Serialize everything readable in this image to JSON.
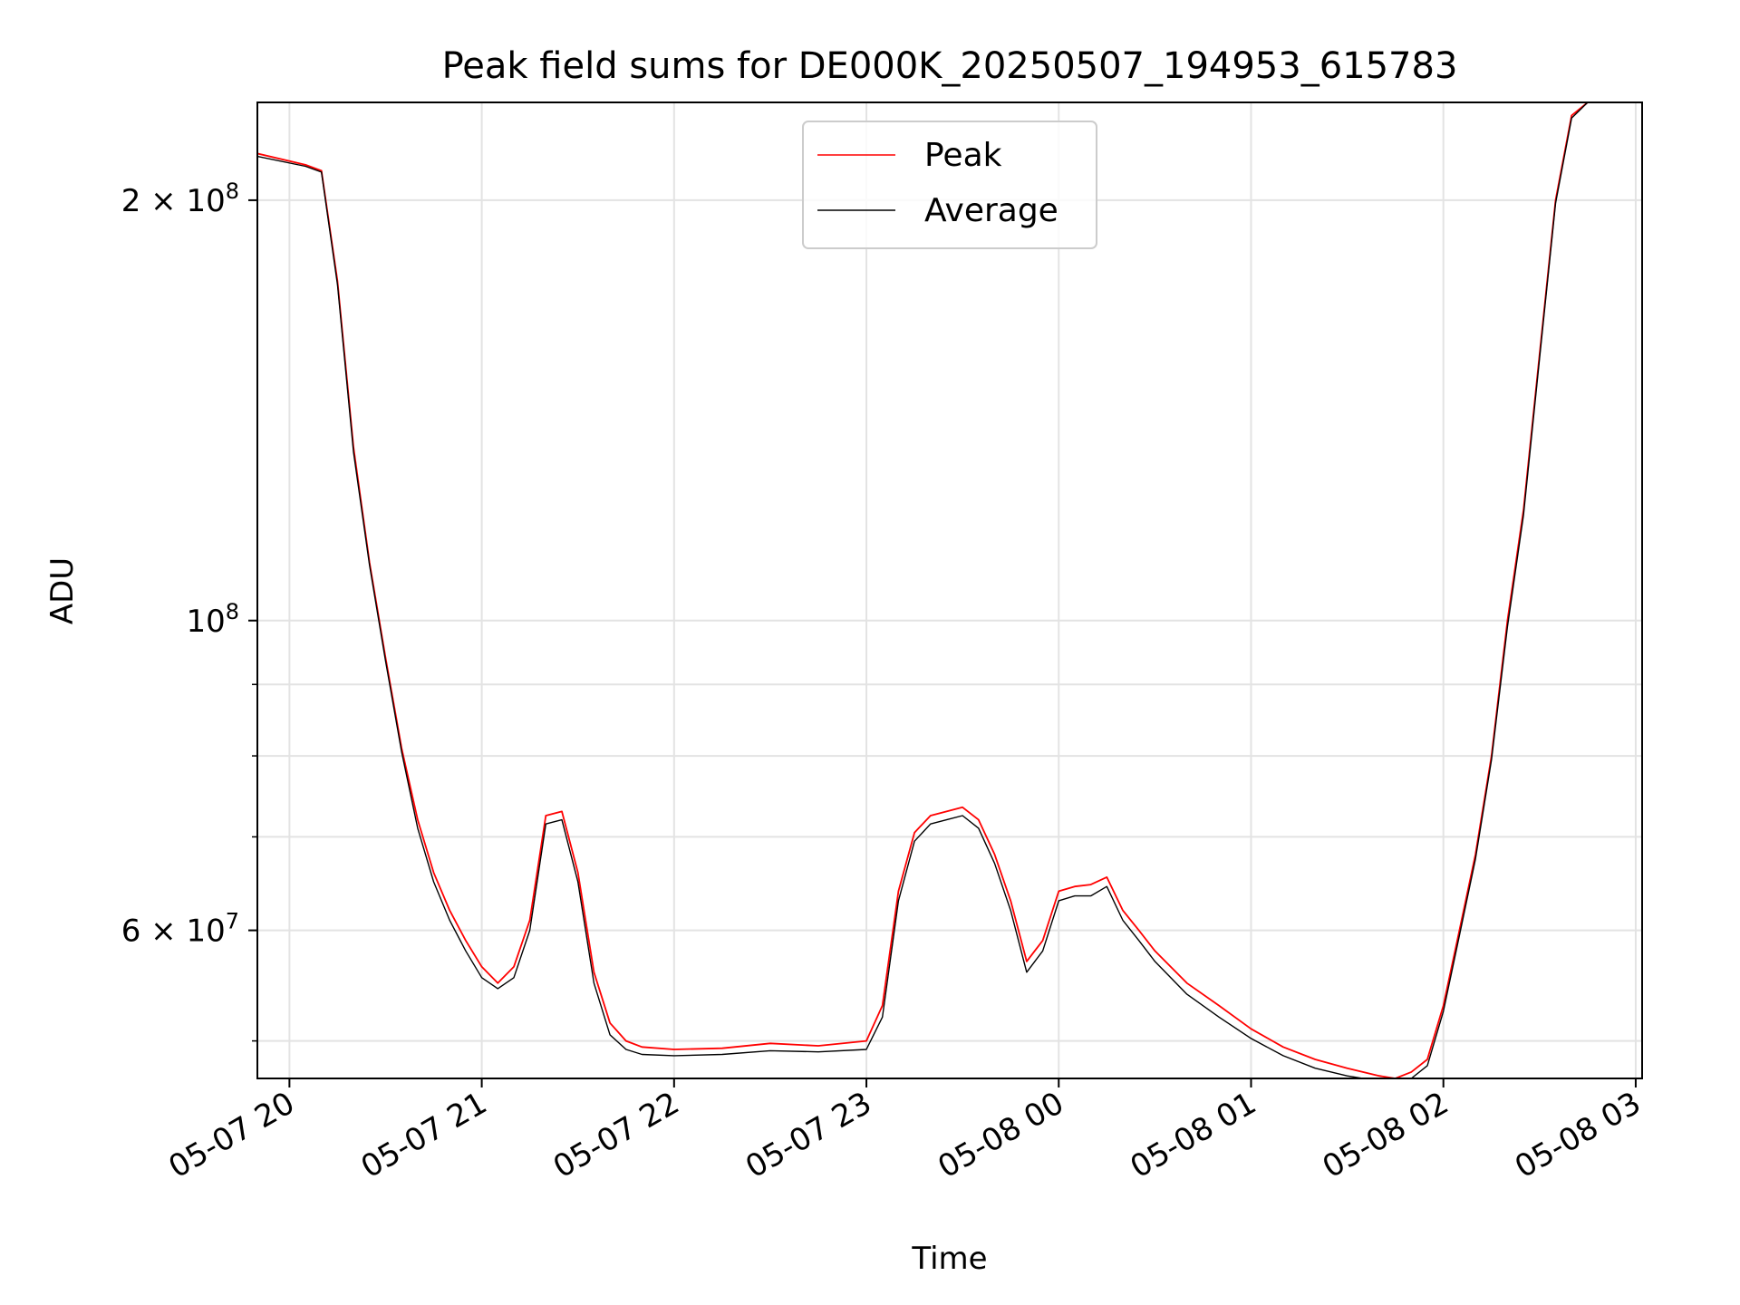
{
  "chart_data": {
    "type": "line",
    "title": "Peak field sums for DE000K_20250507_194953_615783",
    "xlabel": "Time",
    "ylabel": "ADU",
    "x_unit": "datetime",
    "xlim": [
      "2025-05-07 19:50",
      "2025-05-08 03:02"
    ],
    "ylim": [
      47000000,
      235000000
    ],
    "yscale": "log",
    "grid": true,
    "legend_position": "top-center",
    "x_ticks": [
      "05-07 20",
      "05-07 21",
      "05-07 22",
      "05-07 23",
      "05-08 00",
      "05-08 01",
      "05-08 02",
      "05-08 03"
    ],
    "x_tick_values": [
      "2025-05-07 20:00",
      "2025-05-07 21:00",
      "2025-05-07 22:00",
      "2025-05-07 23:00",
      "2025-05-08 00:00",
      "2025-05-08 01:00",
      "2025-05-08 02:00",
      "2025-05-08 03:00"
    ],
    "y_major_ticks": [
      {
        "value": 200000000,
        "mantissa": "2",
        "exp": "8"
      },
      {
        "value": 100000000,
        "mantissa": "",
        "exp": "8"
      },
      {
        "value": 60000000,
        "mantissa": "6",
        "exp": "7"
      }
    ],
    "y_minor_ticks": [
      50000000,
      70000000,
      80000000,
      90000000
    ],
    "colors": {
      "peak": "#ff0000",
      "average": "#000000"
    },
    "series": [
      {
        "name": "Peak",
        "x": [
          "2025-05-07 19:50",
          "2025-05-07 20:05",
          "2025-05-07 20:10",
          "2025-05-07 20:15",
          "2025-05-07 20:20",
          "2025-05-07 20:25",
          "2025-05-07 20:30",
          "2025-05-07 20:35",
          "2025-05-07 20:40",
          "2025-05-07 20:45",
          "2025-05-07 20:50",
          "2025-05-07 20:55",
          "2025-05-07 21:00",
          "2025-05-07 21:05",
          "2025-05-07 21:10",
          "2025-05-07 21:15",
          "2025-05-07 21:20",
          "2025-05-07 21:25",
          "2025-05-07 21:30",
          "2025-05-07 21:35",
          "2025-05-07 21:40",
          "2025-05-07 21:45",
          "2025-05-07 21:50",
          "2025-05-07 22:00",
          "2025-05-07 22:15",
          "2025-05-07 22:30",
          "2025-05-07 22:45",
          "2025-05-07 23:00",
          "2025-05-07 23:05",
          "2025-05-07 23:10",
          "2025-05-07 23:15",
          "2025-05-07 23:20",
          "2025-05-07 23:25",
          "2025-05-07 23:30",
          "2025-05-07 23:35",
          "2025-05-07 23:40",
          "2025-05-07 23:45",
          "2025-05-07 23:50",
          "2025-05-07 23:55",
          "2025-05-08 00:00",
          "2025-05-08 00:05",
          "2025-05-08 00:10",
          "2025-05-08 00:15",
          "2025-05-08 00:20",
          "2025-05-08 00:25",
          "2025-05-08 00:30",
          "2025-05-08 00:40",
          "2025-05-08 00:50",
          "2025-05-08 01:00",
          "2025-05-08 01:10",
          "2025-05-08 01:20",
          "2025-05-08 01:30",
          "2025-05-08 01:40",
          "2025-05-08 01:45",
          "2025-05-08 01:50",
          "2025-05-08 01:55",
          "2025-05-08 02:00",
          "2025-05-08 02:05",
          "2025-05-08 02:10",
          "2025-05-08 02:15",
          "2025-05-08 02:20",
          "2025-05-08 02:25",
          "2025-05-08 02:30",
          "2025-05-08 02:35",
          "2025-05-08 02:40",
          "2025-05-08 02:45",
          "2025-05-08 02:50",
          "2025-05-08 02:55",
          "2025-05-08 03:02"
        ],
        "y": [
          216000000,
          212000000,
          210000000,
          175000000,
          133000000,
          110000000,
          94000000,
          81000000,
          72000000,
          66000000,
          62000000,
          59000000,
          56500000,
          55000000,
          56500000,
          61000000,
          72500000,
          73000000,
          66000000,
          56000000,
          51500000,
          50000000,
          49500000,
          49300000,
          49400000,
          49800000,
          49600000,
          50000000,
          53000000,
          64000000,
          70500000,
          72500000,
          73000000,
          73500000,
          72000000,
          68000000,
          63000000,
          57000000,
          59000000,
          64000000,
          64500000,
          64700000,
          65500000,
          62000000,
          60000000,
          58000000,
          55000000,
          53000000,
          51000000,
          49500000,
          48500000,
          47800000,
          47200000,
          47000000,
          47500000,
          48500000,
          53000000,
          60000000,
          68000000,
          80000000,
          100000000,
          120000000,
          155000000,
          200000000,
          230000000,
          235000000,
          235000000,
          235000000,
          235000000
        ]
      },
      {
        "name": "Average",
        "x": [
          "2025-05-07 19:50",
          "2025-05-07 20:05",
          "2025-05-07 20:10",
          "2025-05-07 20:15",
          "2025-05-07 20:20",
          "2025-05-07 20:25",
          "2025-05-07 20:30",
          "2025-05-07 20:35",
          "2025-05-07 20:40",
          "2025-05-07 20:45",
          "2025-05-07 20:50",
          "2025-05-07 20:55",
          "2025-05-07 21:00",
          "2025-05-07 21:05",
          "2025-05-07 21:10",
          "2025-05-07 21:15",
          "2025-05-07 21:20",
          "2025-05-07 21:25",
          "2025-05-07 21:30",
          "2025-05-07 21:35",
          "2025-05-07 21:40",
          "2025-05-07 21:45",
          "2025-05-07 21:50",
          "2025-05-07 22:00",
          "2025-05-07 22:15",
          "2025-05-07 22:30",
          "2025-05-07 22:45",
          "2025-05-07 23:00",
          "2025-05-07 23:05",
          "2025-05-07 23:10",
          "2025-05-07 23:15",
          "2025-05-07 23:20",
          "2025-05-07 23:25",
          "2025-05-07 23:30",
          "2025-05-07 23:35",
          "2025-05-07 23:40",
          "2025-05-07 23:45",
          "2025-05-07 23:50",
          "2025-05-07 23:55",
          "2025-05-08 00:00",
          "2025-05-08 00:05",
          "2025-05-08 00:10",
          "2025-05-08 00:15",
          "2025-05-08 00:20",
          "2025-05-08 00:25",
          "2025-05-08 00:30",
          "2025-05-08 00:40",
          "2025-05-08 00:50",
          "2025-05-08 01:00",
          "2025-05-08 01:10",
          "2025-05-08 01:20",
          "2025-05-08 01:30",
          "2025-05-08 01:40",
          "2025-05-08 01:45",
          "2025-05-08 01:50",
          "2025-05-08 01:55",
          "2025-05-08 02:00",
          "2025-05-08 02:05",
          "2025-05-08 02:10",
          "2025-05-08 02:15",
          "2025-05-08 02:20",
          "2025-05-08 02:25",
          "2025-05-08 02:30",
          "2025-05-08 02:35",
          "2025-05-08 02:40",
          "2025-05-08 02:45",
          "2025-05-08 02:50",
          "2025-05-08 02:55",
          "2025-05-08 03:02"
        ],
        "y": [
          215000000,
          211500000,
          209500000,
          174000000,
          132000000,
          109500000,
          93500000,
          80500000,
          71000000,
          65000000,
          61000000,
          58000000,
          55500000,
          54500000,
          55500000,
          60000000,
          71500000,
          72000000,
          65000000,
          55000000,
          50500000,
          49300000,
          48900000,
          48800000,
          48900000,
          49200000,
          49100000,
          49300000,
          52000000,
          63000000,
          69500000,
          71500000,
          72000000,
          72500000,
          71000000,
          67000000,
          62000000,
          56000000,
          58000000,
          63000000,
          63500000,
          63500000,
          64500000,
          61000000,
          59000000,
          57000000,
          54000000,
          52000000,
          50200000,
          48800000,
          47800000,
          47200000,
          46800000,
          46600000,
          47000000,
          48000000,
          52500000,
          59500000,
          67500000,
          79500000,
          99000000,
          119000000,
          154000000,
          199000000,
          229000000,
          235000000,
          235000000,
          235000000,
          235000000
        ]
      }
    ]
  }
}
